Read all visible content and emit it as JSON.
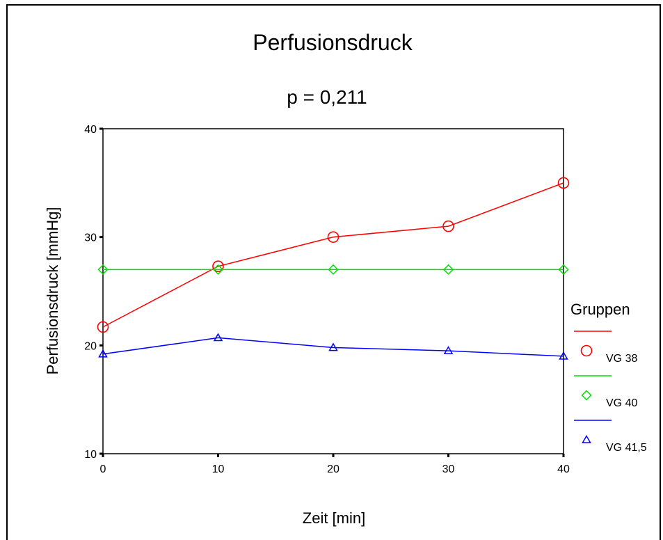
{
  "chart_data": {
    "type": "line",
    "title": "Perfusionsdruck",
    "subtitle": "p = 0,211",
    "xlabel": "Zeit [min]",
    "ylabel": "Perfusionsdruck [mmHg]",
    "x": [
      0,
      10,
      20,
      30,
      40
    ],
    "xticks": [
      "0",
      "10",
      "20",
      "30",
      "40"
    ],
    "yticks": [
      "10",
      "20",
      "30",
      "40"
    ],
    "xlim": [
      0,
      40
    ],
    "ylim": [
      10,
      40
    ],
    "grid": false,
    "legend": {
      "title": "Gruppen",
      "position": "right"
    },
    "series": [
      {
        "name": "VG 38",
        "color": "#ff0000",
        "marker": "circle",
        "values": [
          21.7,
          27.3,
          30.0,
          31.0,
          35.0
        ]
      },
      {
        "name": "VG 40",
        "color": "#00e000",
        "marker": "diamond",
        "values": [
          27.0,
          27.0,
          27.0,
          27.0,
          27.0
        ]
      },
      {
        "name": "VG 41,5",
        "color": "#0000ff",
        "marker": "triangle",
        "values": [
          19.2,
          20.7,
          19.8,
          19.5,
          19.0
        ]
      }
    ]
  }
}
